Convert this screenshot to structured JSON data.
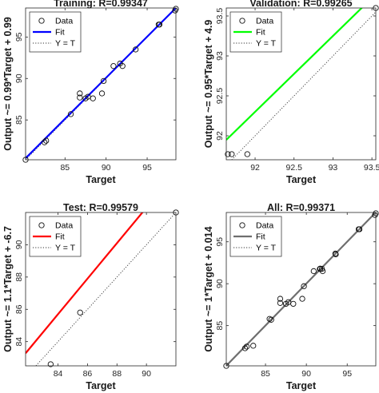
{
  "chart_data": [
    {
      "type": "scatter",
      "title": "Training: R=0.99347",
      "xlabel": "Target",
      "ylabel": "Output ~= 0.99*Target + 0.99",
      "xlim": [
        80.2,
        98.5
      ],
      "ylim": [
        80.2,
        98.5
      ],
      "xticks": [
        85,
        90,
        95
      ],
      "yticks": [
        85,
        90,
        95
      ],
      "fit_color": "#0000ff",
      "fit": {
        "slope": 0.99,
        "intercept": 0.99
      },
      "series": [
        {
          "name": "Data",
          "points": [
            [
              80.2,
              80.2
            ],
            [
              82.5,
              82.3
            ],
            [
              82.7,
              82.5
            ],
            [
              85.7,
              85.7
            ],
            [
              86.8,
              88.2
            ],
            [
              86.8,
              87.7
            ],
            [
              87.5,
              87.6
            ],
            [
              87.8,
              87.8
            ],
            [
              88.4,
              87.6
            ],
            [
              89.5,
              88.2
            ],
            [
              89.7,
              89.7
            ],
            [
              90.9,
              91.5
            ],
            [
              91.7,
              91.8
            ],
            [
              92.0,
              91.5
            ],
            [
              93.6,
              93.5
            ],
            [
              96.4,
              96.5
            ],
            [
              96.5,
              96.5
            ],
            [
              98.4,
              98.2
            ],
            [
              98.5,
              98.4
            ]
          ]
        }
      ],
      "legend": {
        "placement": "top-left",
        "entries": [
          "Data",
          "Fit",
          "Y = T"
        ]
      }
    },
    {
      "type": "scatter",
      "title": "Validation: R=0.99265",
      "xlabel": "Target",
      "ylabel": "Output ~= 0.95*Target + 4.9",
      "xlim": [
        91.63,
        93.55
      ],
      "ylim": [
        91.7,
        93.6
      ],
      "xticks": [
        92,
        92.5,
        93,
        93.5
      ],
      "yticks": [
        92,
        92.5,
        93,
        93.5
      ],
      "fit_color": "#00ff00",
      "fit": {
        "slope": 0.95,
        "intercept": 4.9
      },
      "series": [
        {
          "name": "Data",
          "points": [
            [
              91.65,
              91.77
            ],
            [
              91.7,
              91.77
            ],
            [
              91.9,
              91.77
            ],
            [
              93.55,
              93.6
            ]
          ]
        }
      ],
      "legend": {
        "placement": "top-left",
        "entries": [
          "Data",
          "Fit",
          "Y = T"
        ]
      }
    },
    {
      "type": "scatter",
      "title": "Test: R=0.99579",
      "xlabel": "Target",
      "ylabel": "Output ~= 1.1*Target + -6.7",
      "xlim": [
        81.8,
        92.0
      ],
      "ylim": [
        82.5,
        92.0
      ],
      "xticks": [
        84,
        86,
        88,
        90
      ],
      "yticks": [
        84,
        86,
        88,
        90
      ],
      "fit_color": "#ff0000",
      "fit": {
        "slope": 1.1,
        "intercept": -6.7
      },
      "series": [
        {
          "name": "Data",
          "points": [
            [
              83.5,
              82.6
            ],
            [
              85.5,
              85.8
            ],
            [
              92.0,
              92.0
            ]
          ]
        }
      ],
      "legend": {
        "placement": "top-left",
        "entries": [
          "Data",
          "Fit",
          "Y = T"
        ]
      }
    },
    {
      "type": "scatter",
      "title": "All: R=0.99371",
      "xlabel": "Target",
      "ylabel": "Output ~= 1*Target + 0.014",
      "xlim": [
        80.2,
        98.5
      ],
      "ylim": [
        80.2,
        98.5
      ],
      "xticks": [
        85,
        90,
        95
      ],
      "yticks": [
        85,
        90,
        95
      ],
      "fit_color": "#6e6e6e",
      "fit": {
        "slope": 1.0,
        "intercept": 0.014
      },
      "series": [
        {
          "name": "Data",
          "points": [
            [
              80.2,
              80.2
            ],
            [
              82.5,
              82.3
            ],
            [
              82.7,
              82.5
            ],
            [
              83.5,
              82.6
            ],
            [
              85.5,
              85.8
            ],
            [
              85.7,
              85.7
            ],
            [
              86.8,
              88.2
            ],
            [
              86.8,
              87.7
            ],
            [
              87.5,
              87.6
            ],
            [
              87.8,
              87.8
            ],
            [
              88.4,
              87.6
            ],
            [
              89.5,
              88.2
            ],
            [
              89.7,
              89.7
            ],
            [
              90.9,
              91.5
            ],
            [
              91.65,
              91.77
            ],
            [
              91.7,
              91.77
            ],
            [
              91.9,
              91.77
            ],
            [
              91.7,
              91.8
            ],
            [
              92.0,
              91.5
            ],
            [
              93.55,
              93.6
            ],
            [
              93.6,
              93.5
            ],
            [
              96.4,
              96.5
            ],
            [
              96.5,
              96.5
            ],
            [
              98.4,
              98.2
            ],
            [
              98.5,
              98.4
            ]
          ]
        }
      ],
      "legend": {
        "placement": "top-left",
        "entries": [
          "Data",
          "Fit",
          "Y = T"
        ]
      }
    }
  ]
}
